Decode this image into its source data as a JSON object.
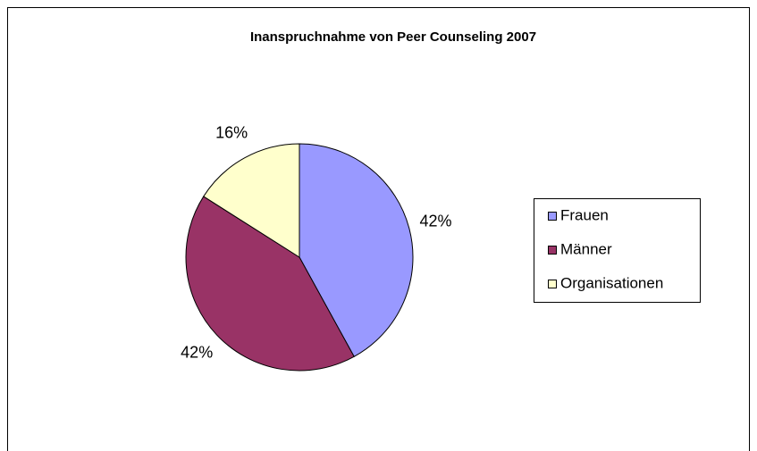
{
  "chart_data": {
    "type": "pie",
    "title": "Inanspruchnahme von Peer Counseling 2007",
    "categories": [
      "Frauen",
      "Männer",
      "Organisationen"
    ],
    "values": [
      42,
      42,
      16
    ],
    "value_labels": [
      "42%",
      "42%",
      "16%"
    ],
    "colors": [
      "#9999ff",
      "#993366",
      "#ffffcc"
    ],
    "legend": "right"
  }
}
